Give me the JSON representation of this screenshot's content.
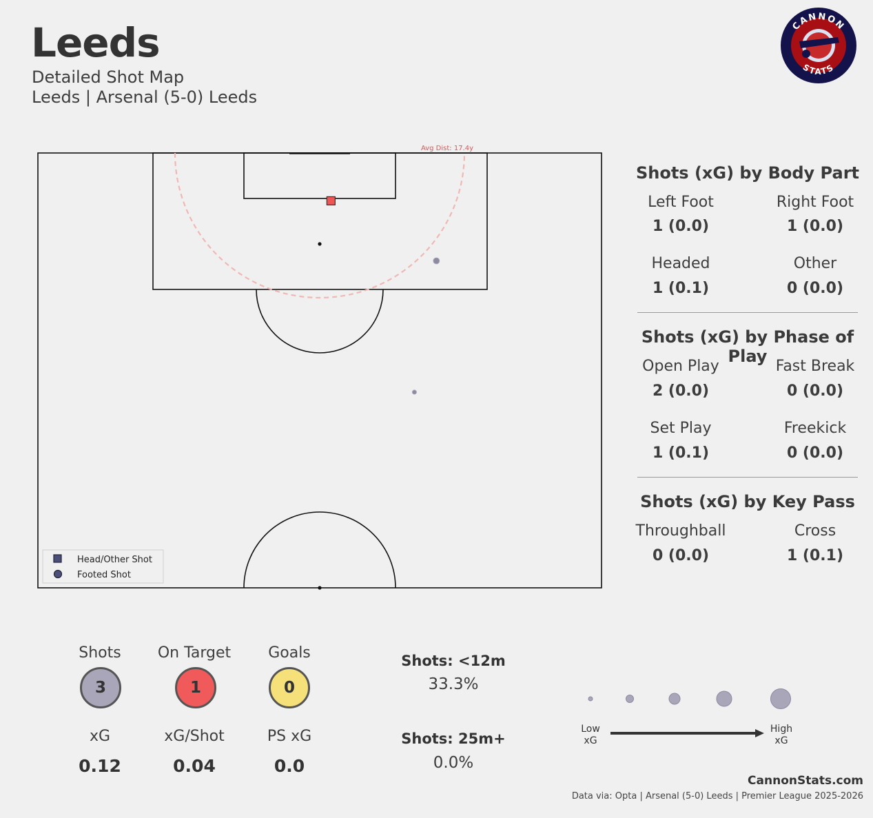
{
  "header": {
    "title": "Leeds",
    "subtitle": "Detailed Shot Map",
    "subtitle2": "Leeds | Arsenal (5-0) Leeds"
  },
  "logo": {
    "top_text": "CANNON",
    "bottom_text": "STATS"
  },
  "pitch": {
    "avg_dist_label": "Avg Dist: 17.4y",
    "legend": [
      {
        "label": "Head/Other Shot",
        "marker": "square"
      },
      {
        "label": "Footed Shot",
        "marker": "circle"
      }
    ]
  },
  "chart_data": {
    "type": "scatter",
    "description_units": "pitch coordinates 0-100 (x along width, y depth from own goal line)",
    "shots": [
      {
        "x": 52,
        "y": 94.5,
        "type": "Head/Other Shot",
        "outcome": "on target",
        "xg": 0.1
      },
      {
        "x": 70.7,
        "y": 87.6,
        "type": "Footed Shot",
        "outcome": "off target",
        "xg": 0.02
      },
      {
        "x": 66.8,
        "y": 72.5,
        "type": "Footed Shot",
        "outcome": "off target",
        "xg": 0.0
      }
    ],
    "avg_distance_yards": 17.4
  },
  "body_part": {
    "heading": "Shots (xG) by Body Part",
    "items": [
      {
        "label": "Left Foot",
        "value": "1 (0.0)"
      },
      {
        "label": "Right Foot",
        "value": "1 (0.0)"
      },
      {
        "label": "Headed",
        "value": "1 (0.1)"
      },
      {
        "label": "Other",
        "value": "0 (0.0)"
      }
    ]
  },
  "phase": {
    "heading": "Shots (xG) by Phase of Play",
    "items": [
      {
        "label": "Open Play",
        "value": "2 (0.0)"
      },
      {
        "label": "Fast Break",
        "value": "0 (0.0)"
      },
      {
        "label": "Set Play",
        "value": "1 (0.1)"
      },
      {
        "label": "Freekick",
        "value": "0 (0.0)"
      }
    ]
  },
  "key_pass": {
    "heading": "Shots (xG) by Key Pass",
    "items": [
      {
        "label": "Throughball",
        "value": "0 (0.0)"
      },
      {
        "label": "Cross",
        "value": "1 (0.1)"
      }
    ]
  },
  "summary": {
    "shots_label": "Shots",
    "shots": "3",
    "shots_color": "#a8a6b8",
    "on_target_label": "On Target",
    "on_target": "1",
    "on_target_color": "#f05a5a",
    "goals_label": "Goals",
    "goals": "0",
    "goals_color": "#f5e07a",
    "xg_label": "xG",
    "xg": "0.12",
    "xg_shot_label": "xG/Shot",
    "xg_shot": "0.04",
    "psxg_label": "PS xG",
    "psxg": "0.0"
  },
  "distance": {
    "short_label": "Shots: <12m",
    "short_value": "33.3%",
    "long_label": "Shots: 25m+",
    "long_value": "0.0%"
  },
  "xg_scale": {
    "low": "Low\nxG",
    "high": "High\nxG",
    "low_1": "Low",
    "low_2": "xG",
    "high_1": "High",
    "high_2": "xG"
  },
  "footer": {
    "brand": "CannonStats.com",
    "credits": "Data via: Opta | Arsenal (5-0) Leeds | Premier League 2025-2026"
  },
  "colors": {
    "accent": "#e05555",
    "shot_gray": "#8c8aa0",
    "square_red": "#ee5555"
  }
}
